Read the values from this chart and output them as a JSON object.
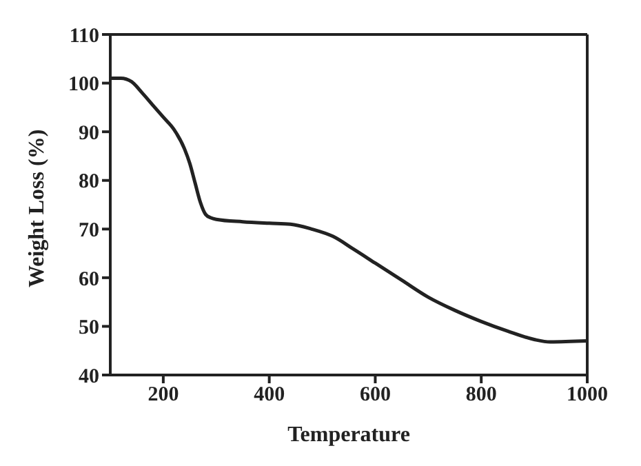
{
  "chart_data": {
    "type": "line",
    "xlabel": "Temperature",
    "ylabel": "Weight Loss (%)",
    "x": [
      100,
      120,
      140,
      160,
      180,
      200,
      220,
      240,
      250,
      260,
      270,
      280,
      290,
      300,
      350,
      400,
      440,
      480,
      520,
      560,
      600,
      650,
      700,
      750,
      800,
      850,
      900,
      930,
      1000
    ],
    "series": [
      {
        "color": "#222222",
        "values": [
          101,
          101,
          100.3,
          98,
          95.5,
          93,
          90.5,
          86.5,
          83.5,
          79.5,
          75.5,
          73,
          72.3,
          72,
          71.5,
          71.2,
          71,
          70,
          68.5,
          65.8,
          63,
          59.5,
          56,
          53.3,
          51,
          49,
          47.3,
          46.8,
          47
        ]
      }
    ],
    "xlim": [
      100,
      1000
    ],
    "xticks": [
      200,
      400,
      600,
      800,
      1000
    ],
    "ylim": [
      40,
      110
    ],
    "yticks": [
      40,
      50,
      60,
      70,
      80,
      90,
      100,
      110
    ],
    "marker": "none",
    "line_style": "solid"
  }
}
